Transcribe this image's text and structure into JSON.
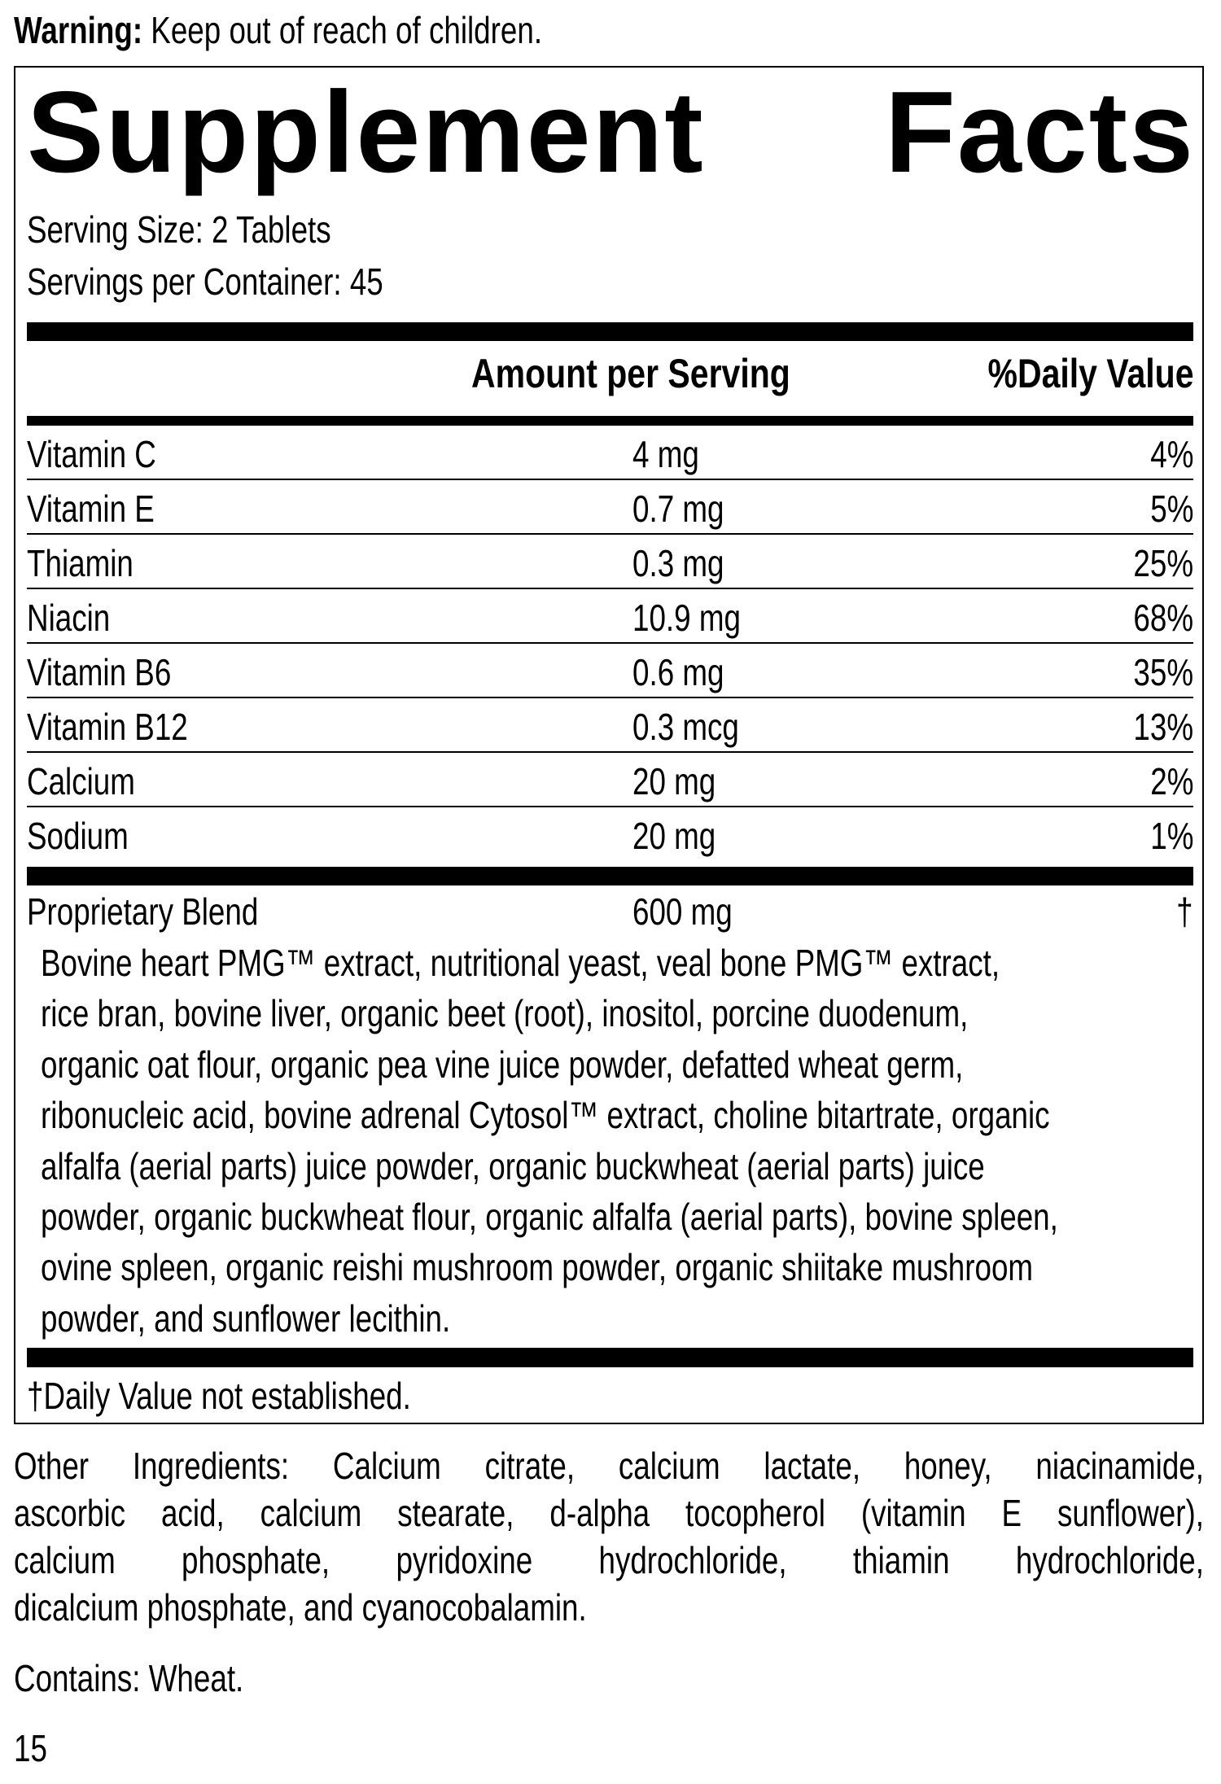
{
  "warning": {
    "label": "Warning:",
    "text": " Keep out of reach of children."
  },
  "title": {
    "word1": "Supplement",
    "word2": "Facts"
  },
  "serving_size": "Serving Size: 2 Tablets",
  "servings_per_container": "Servings per Container: 45",
  "header": {
    "amount": "Amount per Serving",
    "daily_value": "%Daily Value"
  },
  "nutrients": [
    {
      "name": "Vitamin C",
      "amount": "4 mg",
      "dv": "4%"
    },
    {
      "name": "Vitamin E",
      "amount": "0.7 mg",
      "dv": "5%"
    },
    {
      "name": "Thiamin",
      "amount": "0.3 mg",
      "dv": "25%"
    },
    {
      "name": "Niacin",
      "amount": "10.9 mg",
      "dv": "68%"
    },
    {
      "name": "Vitamin B6",
      "amount": "0.6 mg",
      "dv": "35%"
    },
    {
      "name": "Vitamin B12",
      "amount": "0.3 mcg",
      "dv": "13%"
    },
    {
      "name": "Calcium",
      "amount": "20 mg",
      "dv": "2%"
    },
    {
      "name": "Sodium",
      "amount": "20 mg",
      "dv": "1%"
    }
  ],
  "blend": {
    "name": "Proprietary Blend",
    "amount": "600 mg",
    "dv": "†",
    "ingredients_lines": [
      "Bovine heart PMG™ extract, nutritional yeast, veal bone PMG™ extract,",
      "rice bran, bovine liver, organic beet (root), inositol, porcine duodenum,",
      "organic oat flour, organic pea vine juice powder, defatted wheat germ,",
      "ribonucleic acid, bovine adrenal Cytosol™ extract, choline bitartrate, organic",
      "alfalfa (aerial parts) juice powder, organic buckwheat (aerial parts) juice",
      "powder, organic buckwheat flour, organic alfalfa (aerial parts), bovine spleen,",
      "ovine spleen, organic reishi mushroom powder, organic shiitake mushroom",
      "powder, and sunflower lecithin."
    ]
  },
  "footnote": "†Daily Value not established.",
  "other_ingredients_lines": [
    "Other Ingredients: Calcium citrate, calcium lactate, honey, niacinamide,",
    "ascorbic acid, calcium stearate, d-alpha tocopherol (vitamin E sunflower),",
    "calcium phosphate, pyridoxine hydrochloride, thiamin hydrochloride,",
    "dicalcium phosphate, and cyanocobalamin."
  ],
  "contains": "Contains: Wheat.",
  "page_number": "15"
}
